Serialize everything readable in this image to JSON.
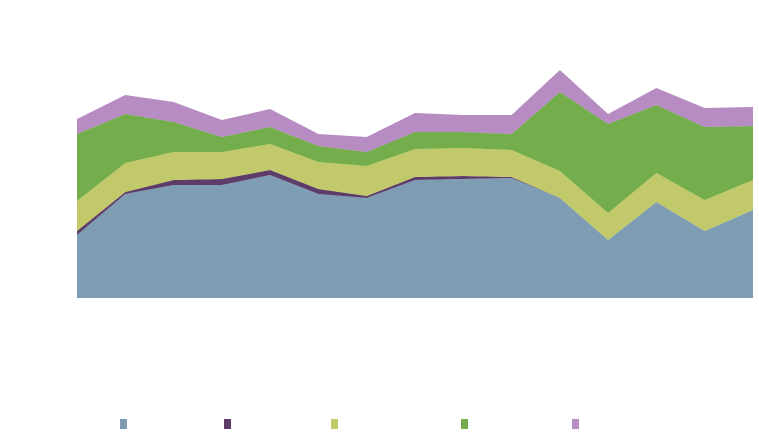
{
  "chart_data": {
    "type": "area",
    "stacked": true,
    "title": "",
    "xlabel": "",
    "ylabel": "",
    "grid": false,
    "legend_position": "bottom",
    "x": [
      1,
      2,
      3,
      4,
      5,
      6,
      7,
      8,
      9,
      10,
      11,
      12,
      13,
      14,
      15
    ],
    "ylim": [
      0,
      233
    ],
    "series": [
      {
        "name": "",
        "color": "#7f9db2",
        "values": [
          63,
          104,
          113,
          113,
          123,
          104,
          100,
          118,
          119,
          120,
          100,
          58,
          96,
          67,
          88
        ]
      },
      {
        "name": "",
        "color": "#5e3c6a",
        "values": [
          4,
          2,
          5,
          6,
          5,
          5,
          2,
          3,
          3,
          1,
          0,
          0,
          0,
          0,
          0
        ]
      },
      {
        "name": "",
        "color": "#c1c96a",
        "values": [
          30,
          29,
          28,
          27,
          26,
          27,
          30,
          28,
          28,
          27,
          27,
          27,
          29,
          31,
          30
        ]
      },
      {
        "name": "",
        "color": "#74ad4c",
        "values": [
          67,
          49,
          30,
          15,
          17,
          16,
          14,
          17,
          16,
          16,
          79,
          89,
          68,
          73,
          54
        ]
      },
      {
        "name": "",
        "color": "#b68cc2",
        "values": [
          15,
          19,
          20,
          17,
          18,
          12,
          15,
          19,
          17,
          19,
          22,
          10,
          17,
          19,
          19
        ]
      }
    ]
  },
  "legend": {
    "items": [
      {
        "label": "",
        "color": "#7f9db2"
      },
      {
        "label": "",
        "color": "#5e3c6a"
      },
      {
        "label": "",
        "color": "#c1c96a"
      },
      {
        "label": "",
        "color": "#74ad4c"
      },
      {
        "label": "",
        "color": "#b68cc2"
      }
    ]
  }
}
